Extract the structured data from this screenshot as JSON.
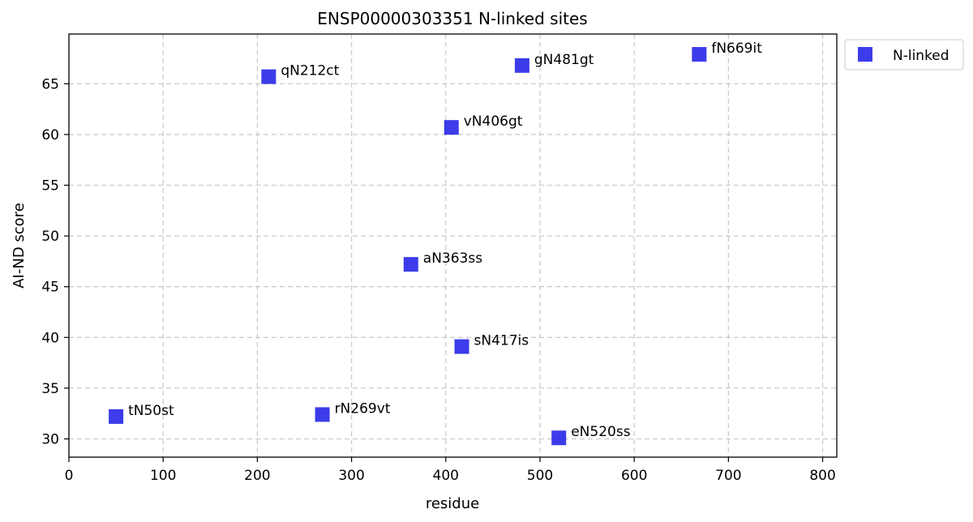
{
  "chart_data": {
    "type": "scatter",
    "title": "ENSP00000303351 N-linked sites",
    "xlabel": "residue",
    "ylabel": "AI-ND score",
    "xlim": [
      0,
      815
    ],
    "ylim": [
      28.2,
      69.9
    ],
    "xticks": [
      0,
      100,
      200,
      300,
      400,
      500,
      600,
      700,
      800
    ],
    "yticks": [
      30,
      35,
      40,
      45,
      50,
      55,
      60,
      65
    ],
    "grid": true,
    "grid_style": "dashed",
    "legend": {
      "position": "outside-top-right",
      "entries": [
        "N-linked"
      ]
    },
    "marker": "square",
    "color": "#1a1ae6",
    "series": [
      {
        "name": "N-linked",
        "points": [
          {
            "x": 50,
            "y": 32.2,
            "label": "tN50st"
          },
          {
            "x": 212,
            "y": 65.7,
            "label": "qN212ct"
          },
          {
            "x": 269,
            "y": 32.4,
            "label": "rN269vt"
          },
          {
            "x": 363,
            "y": 47.2,
            "label": "aN363ss"
          },
          {
            "x": 406,
            "y": 60.7,
            "label": "vN406gt"
          },
          {
            "x": 417,
            "y": 39.1,
            "label": "sN417is"
          },
          {
            "x": 481,
            "y": 66.8,
            "label": "gN481gt"
          },
          {
            "x": 520,
            "y": 30.1,
            "label": "eN520ss"
          },
          {
            "x": 669,
            "y": 67.9,
            "label": "fN669it"
          }
        ]
      }
    ]
  }
}
